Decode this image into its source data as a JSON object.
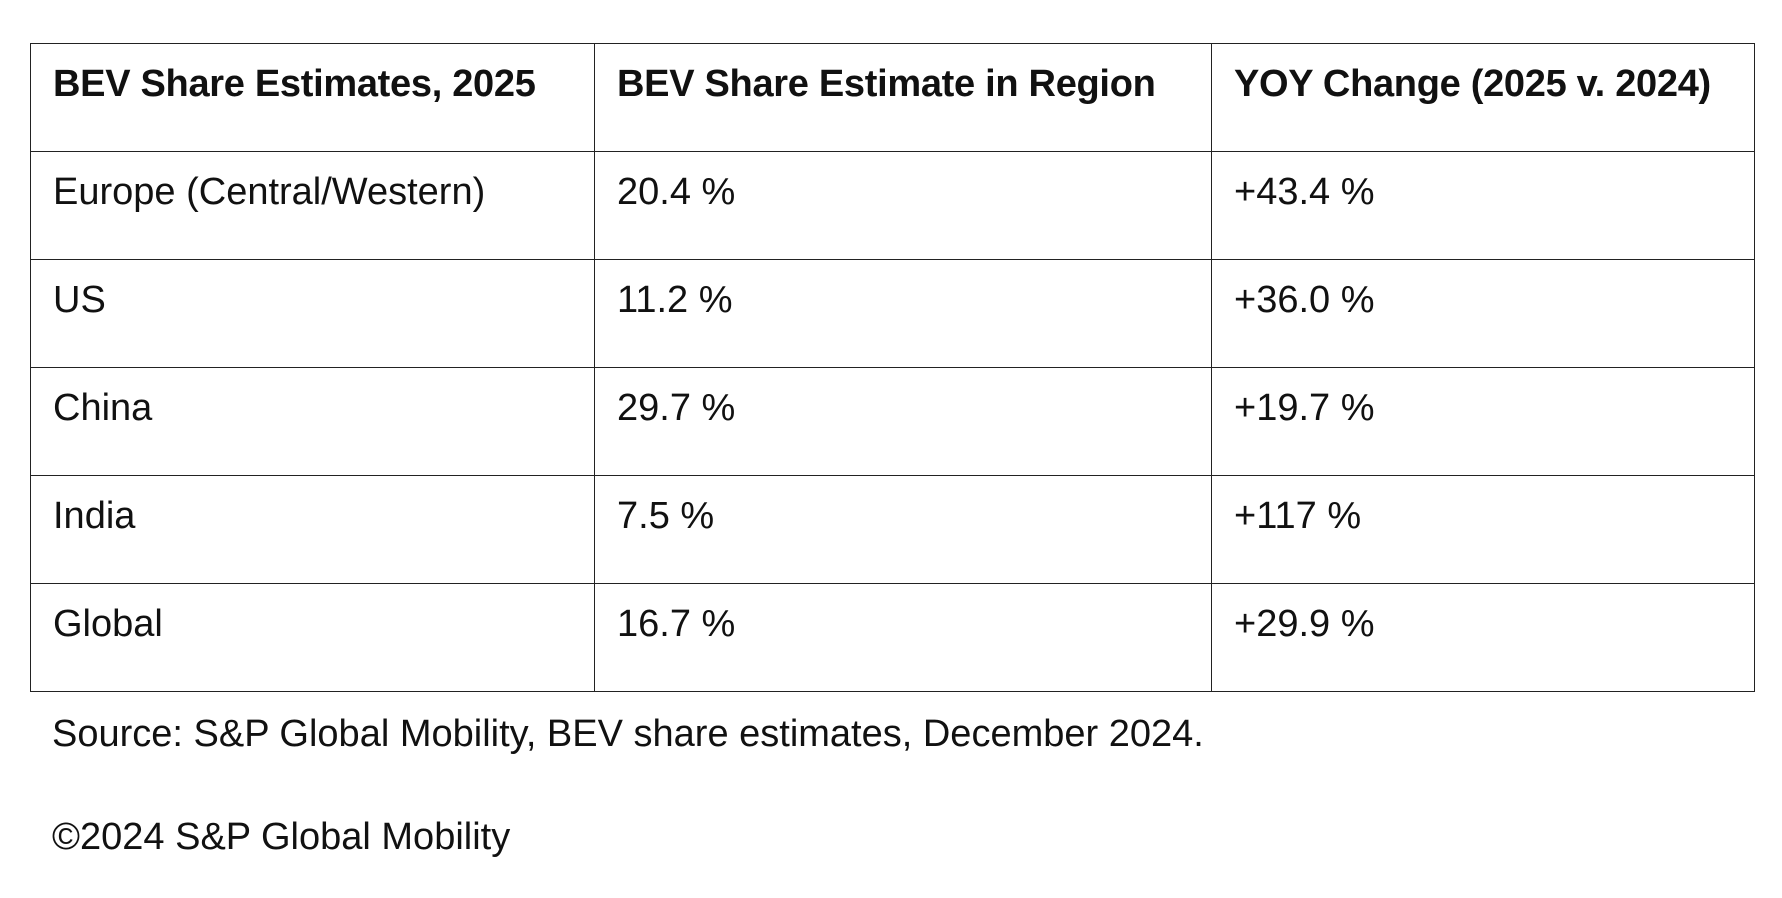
{
  "table": {
    "headers": [
      "BEV Share Estimates, 2025",
      "BEV Share Estimate in Region",
      "YOY Change (2025 v. 2024)"
    ],
    "rows": [
      [
        "Europe (Central/Western)",
        "20.4 %",
        "+43.4 %"
      ],
      [
        "US",
        "11.2 %",
        "+36.0 %"
      ],
      [
        "China",
        "29.7 %",
        "+19.7 %"
      ],
      [
        "India",
        "7.5 %",
        "+117 %"
      ],
      [
        "Global",
        "16.7 %",
        "+29.9 %"
      ]
    ]
  },
  "footer": {
    "source": "Source: S&P Global Mobility, BEV share estimates, December 2024.",
    "copyright": "©2024 S&P Global Mobility"
  }
}
